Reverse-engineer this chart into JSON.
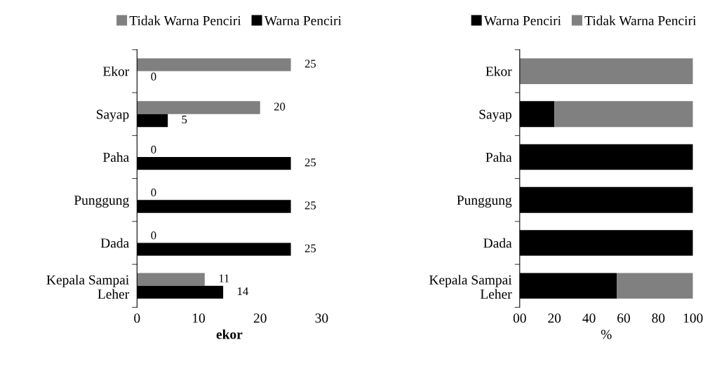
{
  "chart_data": [
    {
      "type": "bar",
      "orientation": "horizontal",
      "categories": [
        "Ekor",
        "Sayap",
        "Paha",
        "Punggung",
        "Dada",
        "Kepala Sampai\nLeher"
      ],
      "series": [
        {
          "name": "Tidak Warna Penciri",
          "color": "#808080",
          "values": [
            25,
            20,
            0,
            0,
            0,
            11
          ]
        },
        {
          "name": "Warna Penciri",
          "color": "#000000",
          "values": [
            0,
            5,
            25,
            25,
            25,
            14
          ]
        }
      ],
      "xlim": [
        0,
        30
      ],
      "xticks": [
        0,
        10,
        20,
        30
      ],
      "xlabel": "ekor",
      "data_labels": true,
      "legend": "top",
      "grid": false
    },
    {
      "type": "bar",
      "orientation": "horizontal",
      "stacked": true,
      "categories": [
        "Ekor",
        "Sayap",
        "Paha",
        "Punggung",
        "Dada",
        "Kepala Sampai\nLeher"
      ],
      "series": [
        {
          "name": "Warna Penciri",
          "color": "#000000",
          "values": [
            0,
            20,
            100,
            100,
            100,
            56
          ]
        },
        {
          "name": "Tidak Warna Penciri",
          "color": "#808080",
          "values": [
            100,
            80,
            0,
            0,
            0,
            44
          ]
        }
      ],
      "xlim": [
        0,
        100
      ],
      "xticks": [
        {
          "value": 0,
          "label": "00"
        },
        20,
        40,
        60,
        80,
        100
      ],
      "xlabel": "%",
      "legend": "top",
      "grid": false
    }
  ]
}
